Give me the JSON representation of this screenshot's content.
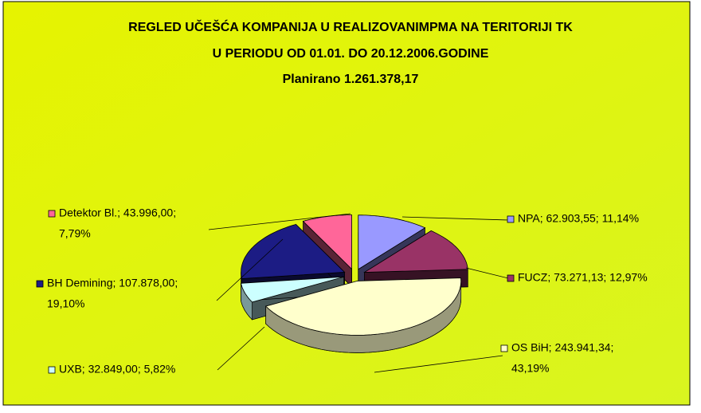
{
  "chart_data": {
    "type": "pie3d",
    "title": "REGLED UČEŠĆA  KOMPANIJA U REALIZOVANIMPMA NA TERITORIJI TK",
    "subtitle": "U PERIODU OD 01.01. DO 20.12.2006.GODINE",
    "annotation": "Planirano 1.261.378,17",
    "values": [
      62903.55,
      73271.13,
      243941.34,
      32849.0,
      107878.0,
      43996.0
    ],
    "value_labels": [
      [
        "NPA; 62.903,55; 11,14%"
      ],
      [
        "FUCZ; 73.271,13; 12,97%"
      ],
      [
        "OS BiH; 243.941,34;",
        "43,19%"
      ],
      [
        "UXB; 32.849,00; 5,82%"
      ],
      [
        "BH Demining; 107.878,00;",
        "19,10%"
      ],
      [
        "Detektor Bl.; 43.996,00;",
        "7,79%"
      ]
    ],
    "colors": [
      "#9999ff",
      "#993366",
      "#ffffcc",
      "#ccffff",
      "#1c1c84",
      "#ff6699"
    ]
  }
}
